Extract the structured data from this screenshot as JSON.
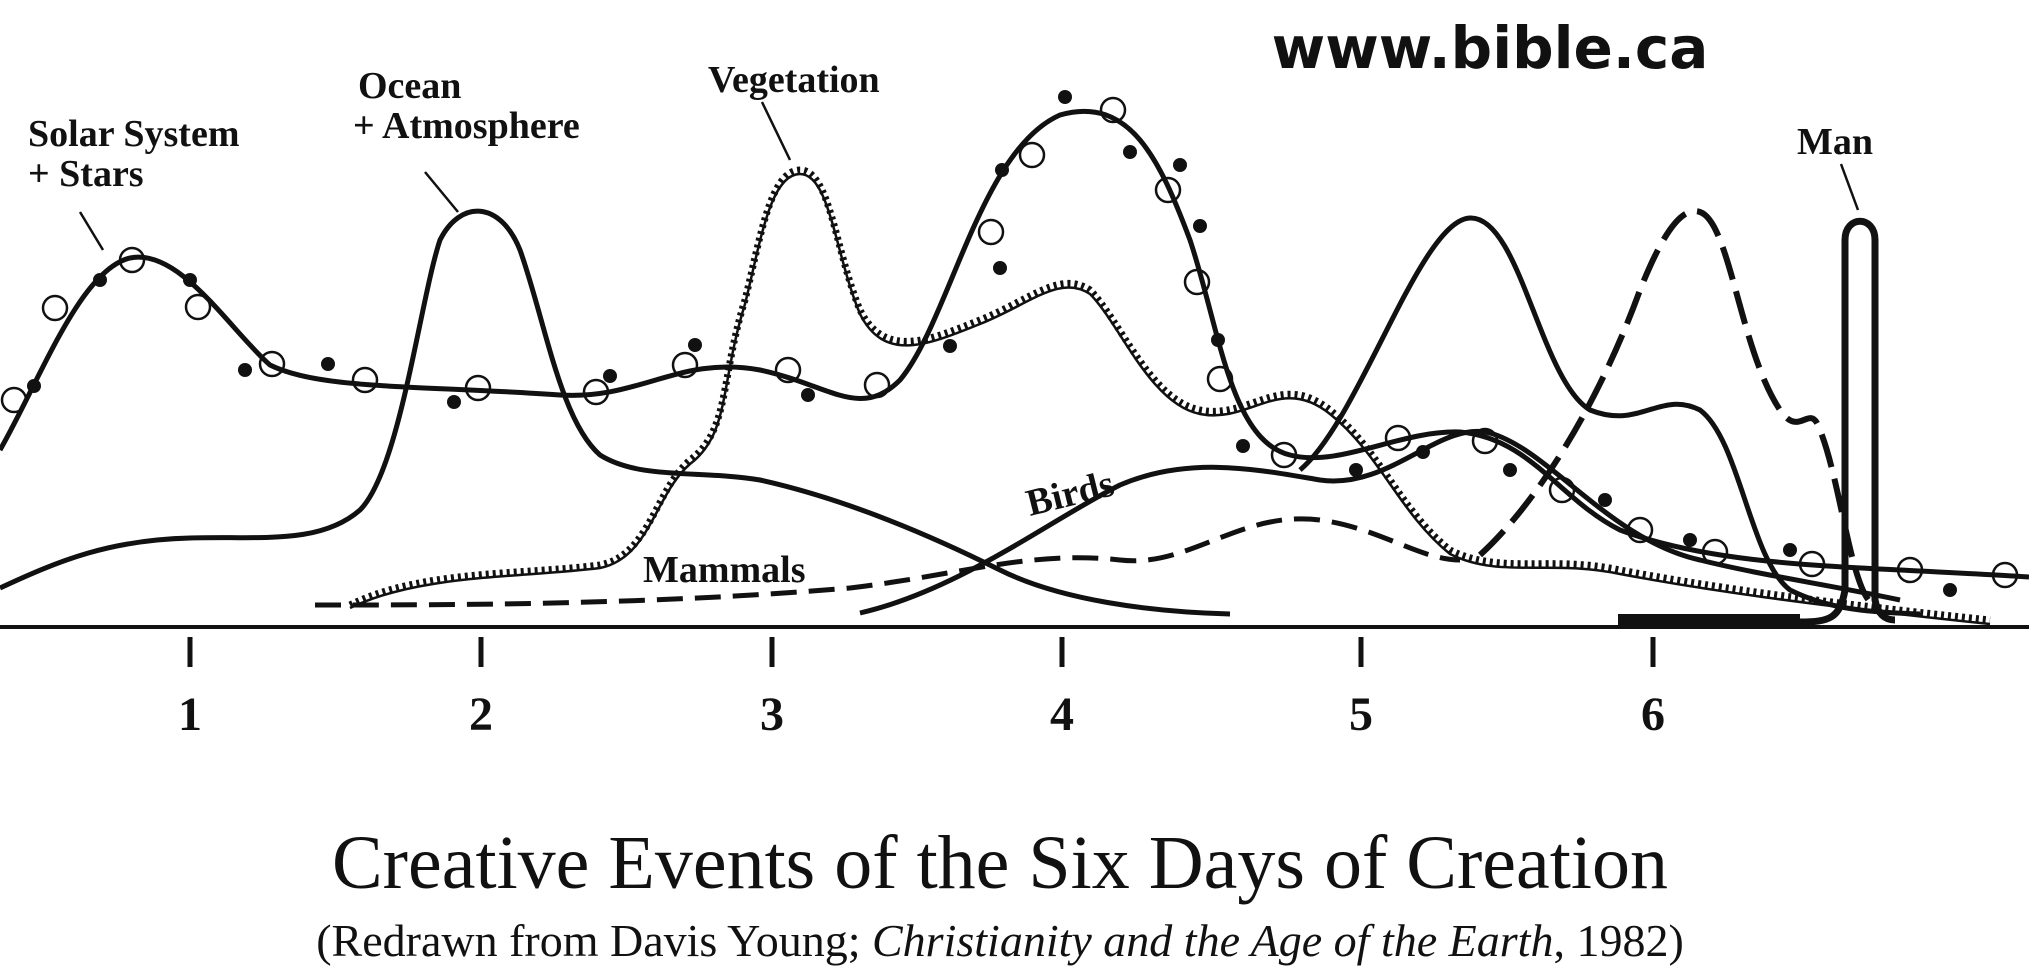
{
  "watermark": "www.bible.ca",
  "labels": {
    "solar_line1": "Solar System",
    "solar_line2": "+ Stars",
    "ocean_line1": "Ocean",
    "ocean_line2": "+ Atmosphere",
    "vegetation": "Vegetation",
    "man": "Man",
    "birds": "Birds",
    "mammals": "Mammals"
  },
  "day_ticks": [
    "1",
    "2",
    "3",
    "4",
    "5",
    "6"
  ],
  "title": "Creative Events of the Six Days of Creation",
  "caption": {
    "prefix": "(Redrawn from Davis Young; ",
    "book": "Christianity and the Age of the Earth",
    "suffix": ", 1982)"
  },
  "colors": {
    "ink": "#111111",
    "background": "#ffffff"
  }
}
